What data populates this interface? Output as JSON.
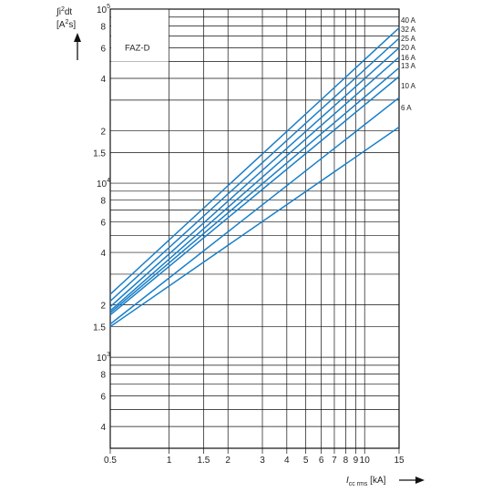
{
  "chart_data": {
    "type": "line",
    "title": "FAZ-D",
    "ylabel": {
      "prefix": "∫i",
      "exp": "2",
      "suffix": "dt",
      "unit_open": "[A",
      "unit_exp": "2",
      "unit_close": "s]"
    },
    "xlabel": {
      "symbol": "I",
      "sub": "cc rms",
      "unit": " [kA]"
    },
    "x_scale": "log",
    "y_scale": "log",
    "xlim": [
      0.5,
      15
    ],
    "ylim": [
      300,
      100000
    ],
    "x_ticks": [
      {
        "value": 0.5,
        "label": "0.5"
      },
      {
        "value": 1,
        "label": "1"
      },
      {
        "value": 1.5,
        "label": "1.5"
      },
      {
        "value": 2,
        "label": "2"
      },
      {
        "value": 3,
        "label": "3"
      },
      {
        "value": 4,
        "label": "4"
      },
      {
        "value": 5,
        "label": "5"
      },
      {
        "value": 6,
        "label": "6"
      },
      {
        "value": 7,
        "label": "7"
      },
      {
        "value": 8,
        "label": "8"
      },
      {
        "value": 9,
        "label": "9"
      },
      {
        "value": 10,
        "label": "10"
      },
      {
        "value": 15,
        "label": "15"
      }
    ],
    "y_ticks": [
      {
        "value": 400,
        "label": "4",
        "exp": ""
      },
      {
        "value": 600,
        "label": "6",
        "exp": ""
      },
      {
        "value": 800,
        "label": "8",
        "exp": ""
      },
      {
        "value": 1000,
        "label": "10",
        "exp": "3"
      },
      {
        "value": 1500,
        "label": "1.5",
        "exp": ""
      },
      {
        "value": 2000,
        "label": "2",
        "exp": ""
      },
      {
        "value": 4000,
        "label": "4",
        "exp": ""
      },
      {
        "value": 6000,
        "label": "6",
        "exp": ""
      },
      {
        "value": 8000,
        "label": "8",
        "exp": ""
      },
      {
        "value": 10000,
        "label": "10",
        "exp": "4"
      },
      {
        "value": 15000,
        "label": "1.5",
        "exp": ""
      },
      {
        "value": 20000,
        "label": "2",
        "exp": ""
      },
      {
        "value": 40000,
        "label": "4",
        "exp": ""
      },
      {
        "value": 60000,
        "label": "6",
        "exp": ""
      },
      {
        "value": 80000,
        "label": "8",
        "exp": ""
      },
      {
        "value": 100000,
        "label": "10",
        "exp": "5"
      }
    ],
    "minor_y": [
      300,
      500,
      700,
      900,
      3000,
      5000,
      7000,
      9000,
      30000,
      50000,
      70000,
      90000
    ],
    "grid": true,
    "line_color": "#1a7fc8",
    "series": [
      {
        "name": "40 A",
        "x": [
          0.5,
          15
        ],
        "y": [
          2300,
          78000
        ]
      },
      {
        "name": "32 A",
        "x": [
          0.5,
          15
        ],
        "y": [
          2100,
          68000
        ]
      },
      {
        "name": "25 A",
        "x": [
          0.5,
          15
        ],
        "y": [
          1950,
          60000
        ]
      },
      {
        "name": "20 A",
        "x": [
          0.5,
          15
        ],
        "y": [
          1850,
          53000
        ]
      },
      {
        "name": "16 A",
        "x": [
          0.5,
          15
        ],
        "y": [
          1800,
          46000
        ]
      },
      {
        "name": "13 A",
        "x": [
          0.5,
          15
        ],
        "y": [
          1750,
          41000
        ]
      },
      {
        "name": "10 A",
        "x": [
          0.5,
          15
        ],
        "y": [
          1550,
          31000
        ]
      },
      {
        "name": "6 A",
        "x": [
          0.5,
          15
        ],
        "y": [
          1500,
          21000
        ]
      }
    ]
  }
}
